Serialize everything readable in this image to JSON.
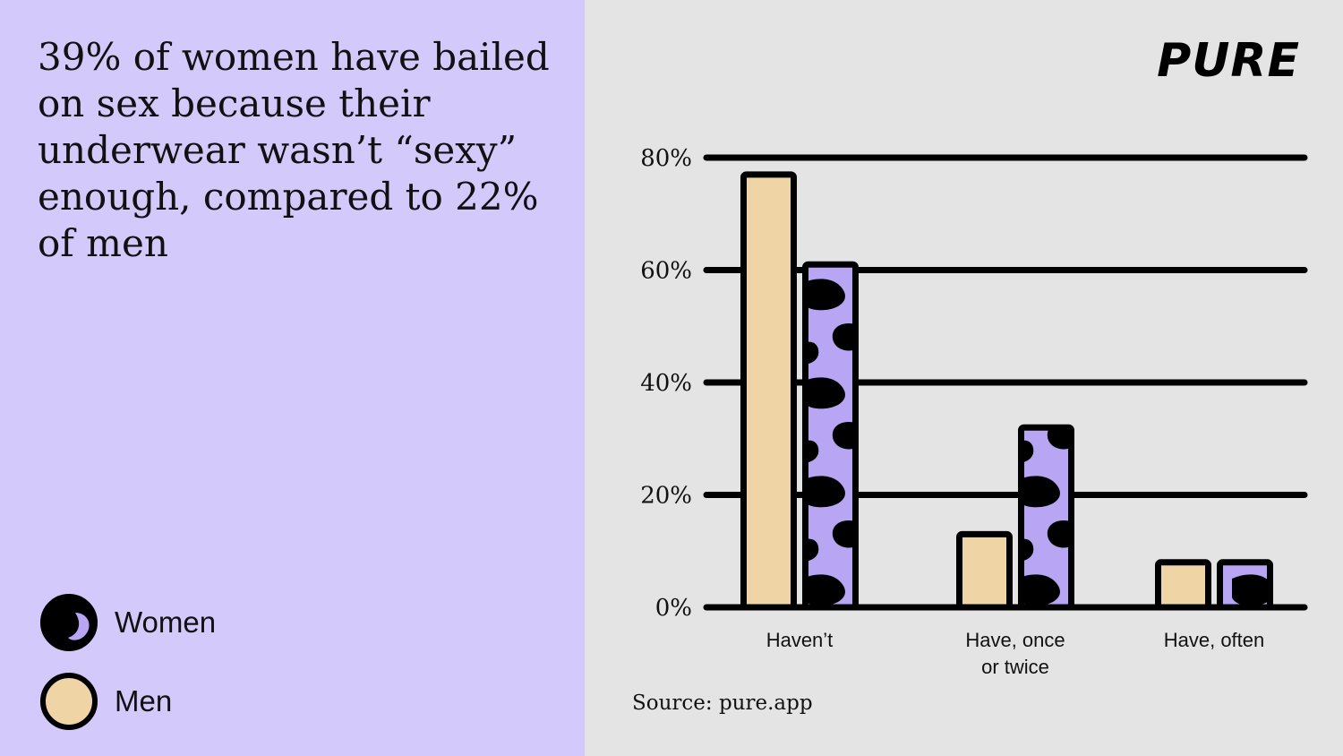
{
  "headline": "39% of women have bailed on sex because their underwear wasn’t “sexy” enough, compared to 22% of men",
  "logo": "PURE",
  "source": "Source: pure.app",
  "legend": [
    {
      "label": "Women",
      "icon": "women-swatch-icon"
    },
    {
      "label": "Men",
      "icon": "men-swatch-icon"
    }
  ],
  "colors": {
    "left_background": "#d3c9fb",
    "right_background": "#e4e4e4",
    "men_fill": "#efd4a6",
    "women_fill": "#b8a6f5",
    "women_pattern": "#000000",
    "ink": "#000000"
  },
  "chart_data": {
    "type": "bar",
    "categories": [
      "Haven’t",
      "Have, once or twice",
      "Have, often"
    ],
    "category_lines": [
      [
        "Haven’t"
      ],
      [
        "Have, once",
        "or twice"
      ],
      [
        "Have, often"
      ]
    ],
    "series": [
      {
        "name": "Men",
        "values": [
          77,
          13,
          8
        ]
      },
      {
        "name": "Women",
        "values": [
          61,
          32,
          8
        ]
      }
    ],
    "ylim": [
      0,
      80
    ],
    "yticks": [
      0,
      20,
      40,
      60,
      80
    ],
    "ytick_labels": [
      "0%",
      "20%",
      "40%",
      "60%",
      "80%"
    ],
    "grid": true,
    "legend_position": "bottom-left"
  }
}
